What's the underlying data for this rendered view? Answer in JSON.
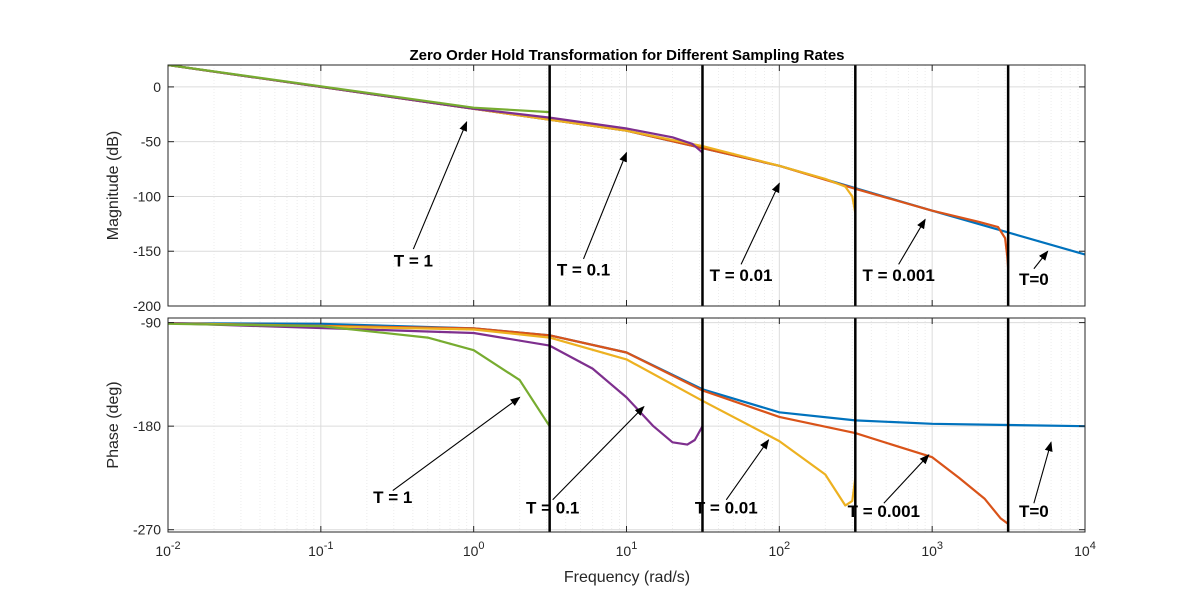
{
  "chart_data": {
    "type": "line",
    "title": "Zero Order Hold Transformation for Different Sampling Rates",
    "xlabel": "Frequency  (rad/s)",
    "xscale": "log",
    "xlim": [
      0.01,
      10000
    ],
    "x_tick_labels": [
      {
        "value": 0.01,
        "base": "10",
        "exp": "-2"
      },
      {
        "value": 0.1,
        "base": "10",
        "exp": "-1"
      },
      {
        "value": 1,
        "base": "10",
        "exp": "0"
      },
      {
        "value": 10,
        "base": "10",
        "exp": "1"
      },
      {
        "value": 100,
        "base": "10",
        "exp": "2"
      },
      {
        "value": 1000,
        "base": "10",
        "exp": "3"
      },
      {
        "value": 10000,
        "base": "10",
        "exp": "4"
      }
    ],
    "grid": true,
    "colors": {
      "T=0": "#0072BD",
      "T = 0.001": "#D95319",
      "T = 0.01": "#EDB120",
      "T = 0.1": "#7E2F8E",
      "T = 1": "#77AC30",
      "nyquist_lines": "#000000"
    },
    "nyquist_lines": [
      3.1416,
      31.416,
      314.16,
      3141.6
    ],
    "subplots": [
      {
        "ylabel": "Magnitude (dB)",
        "ylim": [
          -200,
          20
        ],
        "y_ticks": [
          0,
          -50,
          -100,
          -150,
          -200
        ],
        "y_tick_labels": [
          "0",
          "-50",
          "-100",
          "-150",
          "-200"
        ],
        "series": [
          {
            "key": "T=0",
            "points": [
              [
                0.01,
                20.0
              ],
              [
                1,
                -20.0
              ],
              [
                10,
                -40.0
              ],
              [
                100,
                -72.0
              ],
              [
                1000,
                -113.0
              ],
              [
                10000,
                -153.0
              ]
            ]
          },
          {
            "key": "T = 0.001",
            "points": [
              [
                0.01,
                20.0
              ],
              [
                10,
                -40.0
              ],
              [
                100,
                -72.0
              ],
              [
                314.16,
                -93.0
              ],
              [
                1000,
                -113.0
              ],
              [
                2000,
                -123.0
              ],
              [
                2700,
                -128.0
              ],
              [
                3000,
                -138.0
              ],
              [
                3100,
                -155.0
              ],
              [
                3141.6,
                -165.0
              ]
            ]
          },
          {
            "key": "T = 0.01",
            "points": [
              [
                0.01,
                20.0
              ],
              [
                10,
                -40.0
              ],
              [
                31.416,
                -54.0
              ],
              [
                100,
                -72.0
              ],
              [
                200,
                -84.0
              ],
              [
                270,
                -91.0
              ],
              [
                300,
                -100.0
              ],
              [
                314.16,
                -115.0
              ]
            ]
          },
          {
            "key": "T = 0.1",
            "points": [
              [
                0.01,
                20.0
              ],
              [
                1,
                -20.0
              ],
              [
                3.1416,
                -28.0
              ],
              [
                10,
                -38.0
              ],
              [
                20,
                -46.0
              ],
              [
                27,
                -52.0
              ],
              [
                31.416,
                -60.0
              ]
            ]
          },
          {
            "key": "T = 1",
            "points": [
              [
                0.01,
                20.0
              ],
              [
                1,
                -19.0
              ],
              [
                3.1416,
                -23.0
              ]
            ]
          }
        ],
        "annotations": [
          {
            "text": "T = 1",
            "text_x": 0.3,
            "text_y": -164,
            "tip_x": 0.9,
            "tip_y": -32,
            "tail_y": -148
          },
          {
            "text": "T = 0.1",
            "text_x": 3.5,
            "text_y": -172,
            "tip_x": 10,
            "tip_y": -60,
            "tail_y": -157
          },
          {
            "text": "T = 0.01",
            "text_x": 35,
            "text_y": -177,
            "tip_x": 100,
            "tip_y": -88,
            "tail_y": -162
          },
          {
            "text": "T = 0.001",
            "text_x": 350,
            "text_y": -177,
            "tip_x": 900,
            "tip_y": -121,
            "tail_y": -162
          },
          {
            "text": "T=0",
            "text_x": 3700,
            "text_y": -181,
            "tip_x": 5700,
            "tip_y": -150,
            "tail_y": -166
          }
        ]
      },
      {
        "ylabel": "Phase (deg)",
        "ylim": [
          -272,
          -86
        ],
        "y_ticks": [
          -90,
          -180,
          -270
        ],
        "y_tick_labels": [
          "-90",
          "-180",
          "-270"
        ],
        "series": [
          {
            "key": "T=0",
            "points": [
              [
                0.01,
                -90.5
              ],
              [
                0.1,
                -91.0
              ],
              [
                1,
                -95.0
              ],
              [
                3.1416,
                -101.0
              ],
              [
                10,
                -116.0
              ],
              [
                31.416,
                -148.0
              ],
              [
                100,
                -168.0
              ],
              [
                314.16,
                -175.0
              ],
              [
                1000,
                -178.0
              ],
              [
                3141.6,
                -179.0
              ],
              [
                10000,
                -180.0
              ]
            ]
          },
          {
            "key": "T = 0.001",
            "points": [
              [
                0.01,
                -90.5
              ],
              [
                1,
                -95.0
              ],
              [
                3.1416,
                -101.0
              ],
              [
                10,
                -116.0
              ],
              [
                31.416,
                -149.0
              ],
              [
                100,
                -172.0
              ],
              [
                314.16,
                -186.0
              ],
              [
                1000,
                -207.0
              ],
              [
                1500,
                -225.0
              ],
              [
                2200,
                -243.0
              ],
              [
                2800,
                -260.0
              ],
              [
                3141.6,
                -265.0
              ]
            ]
          },
          {
            "key": "T = 0.01",
            "points": [
              [
                0.01,
                -90.5
              ],
              [
                1,
                -96.0
              ],
              [
                3.1416,
                -103.0
              ],
              [
                10,
                -122.0
              ],
              [
                31.416,
                -158.0
              ],
              [
                100,
                -193.0
              ],
              [
                200,
                -222.0
              ],
              [
                270,
                -249.0
              ],
              [
                300,
                -245.0
              ],
              [
                314.16,
                -225.0
              ]
            ]
          },
          {
            "key": "T = 0.1",
            "points": [
              [
                0.01,
                -90.5
              ],
              [
                1,
                -99.0
              ],
              [
                3.1416,
                -110.0
              ],
              [
                6,
                -130.0
              ],
              [
                10,
                -155.0
              ],
              [
                15,
                -180.0
              ],
              [
                20,
                -194.0
              ],
              [
                25,
                -196.0
              ],
              [
                28,
                -192.0
              ],
              [
                31.416,
                -180.0
              ]
            ]
          },
          {
            "key": "T = 1",
            "points": [
              [
                0.01,
                -91.0
              ],
              [
                0.1,
                -93.0
              ],
              [
                0.5,
                -103.0
              ],
              [
                1,
                -114.0
              ],
              [
                2,
                -140.0
              ],
              [
                3.1416,
                -180.0
              ]
            ]
          }
        ],
        "annotations": [
          {
            "text": "T = 1",
            "text_x": 0.22,
            "text_y": -247,
            "tip_x": 2,
            "tip_y": -155,
            "tail_y": -236
          },
          {
            "text": "T = 0.1",
            "text_x": 2.2,
            "text_y": -256,
            "tip_x": 13,
            "tip_y": -163,
            "tail_y": -244
          },
          {
            "text": "T = 0.01",
            "text_x": 28,
            "text_y": -256,
            "tip_x": 85,
            "tip_y": -192,
            "tail_y": -244
          },
          {
            "text": "T = 0.001",
            "text_x": 280,
            "text_y": -259,
            "tip_x": 950,
            "tip_y": -205,
            "tail_y": -247
          },
          {
            "text": "T=0",
            "text_x": 3700,
            "text_y": -259,
            "tip_x": 6000,
            "tip_y": -194,
            "tail_y": -247
          }
        ]
      }
    ]
  }
}
